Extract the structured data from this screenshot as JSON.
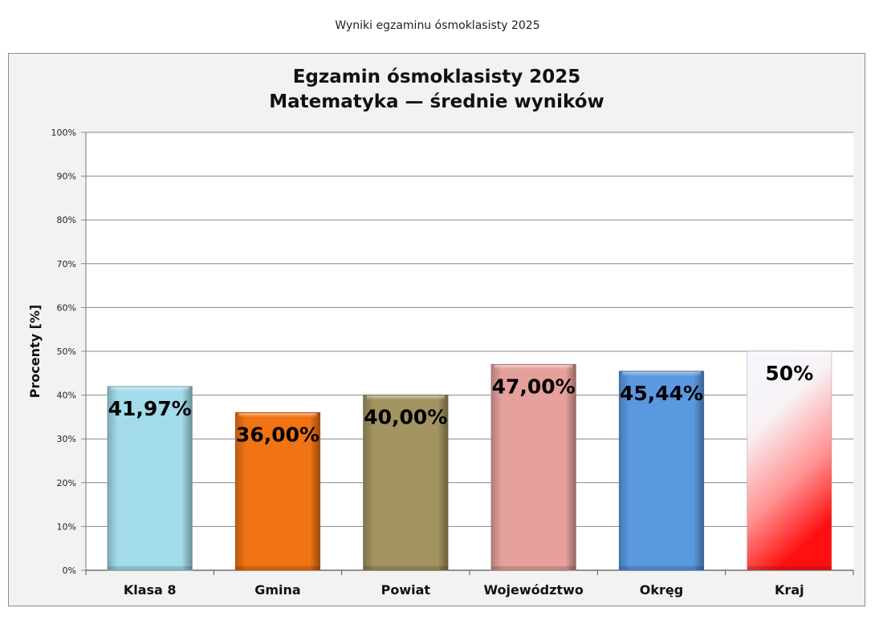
{
  "page": {
    "heading": "Wyniki egzaminu ósmoklasisty 2025"
  },
  "chart_data": {
    "type": "bar",
    "title": "Egzamin ósmoklasisty 2025",
    "subtitle": "Matematyka — średnie wyników",
    "ylabel": "Procenty [%]",
    "xlabel": "",
    "ylim": [
      0,
      100
    ],
    "yticks": [
      "0%",
      "10%",
      "20%",
      "30%",
      "40%",
      "50%",
      "60%",
      "70%",
      "80%",
      "90%",
      "100%"
    ],
    "categories": [
      "Klasa 8",
      "Gmina",
      "Powiat",
      "Województwo",
      "Okręg",
      "Kraj"
    ],
    "values": [
      41.97,
      36.0,
      40.0,
      47.0,
      45.44,
      50.0
    ],
    "data_labels": [
      "41,97%",
      "36,00%",
      "40,00%",
      "47,00%",
      "45,44%",
      "50%"
    ],
    "colors": [
      "#a2dbe9",
      "#f07314",
      "#a29460",
      "#e5a09c",
      "#5a98e0",
      "#ff1010"
    ],
    "grid": true,
    "legend": "none"
  }
}
